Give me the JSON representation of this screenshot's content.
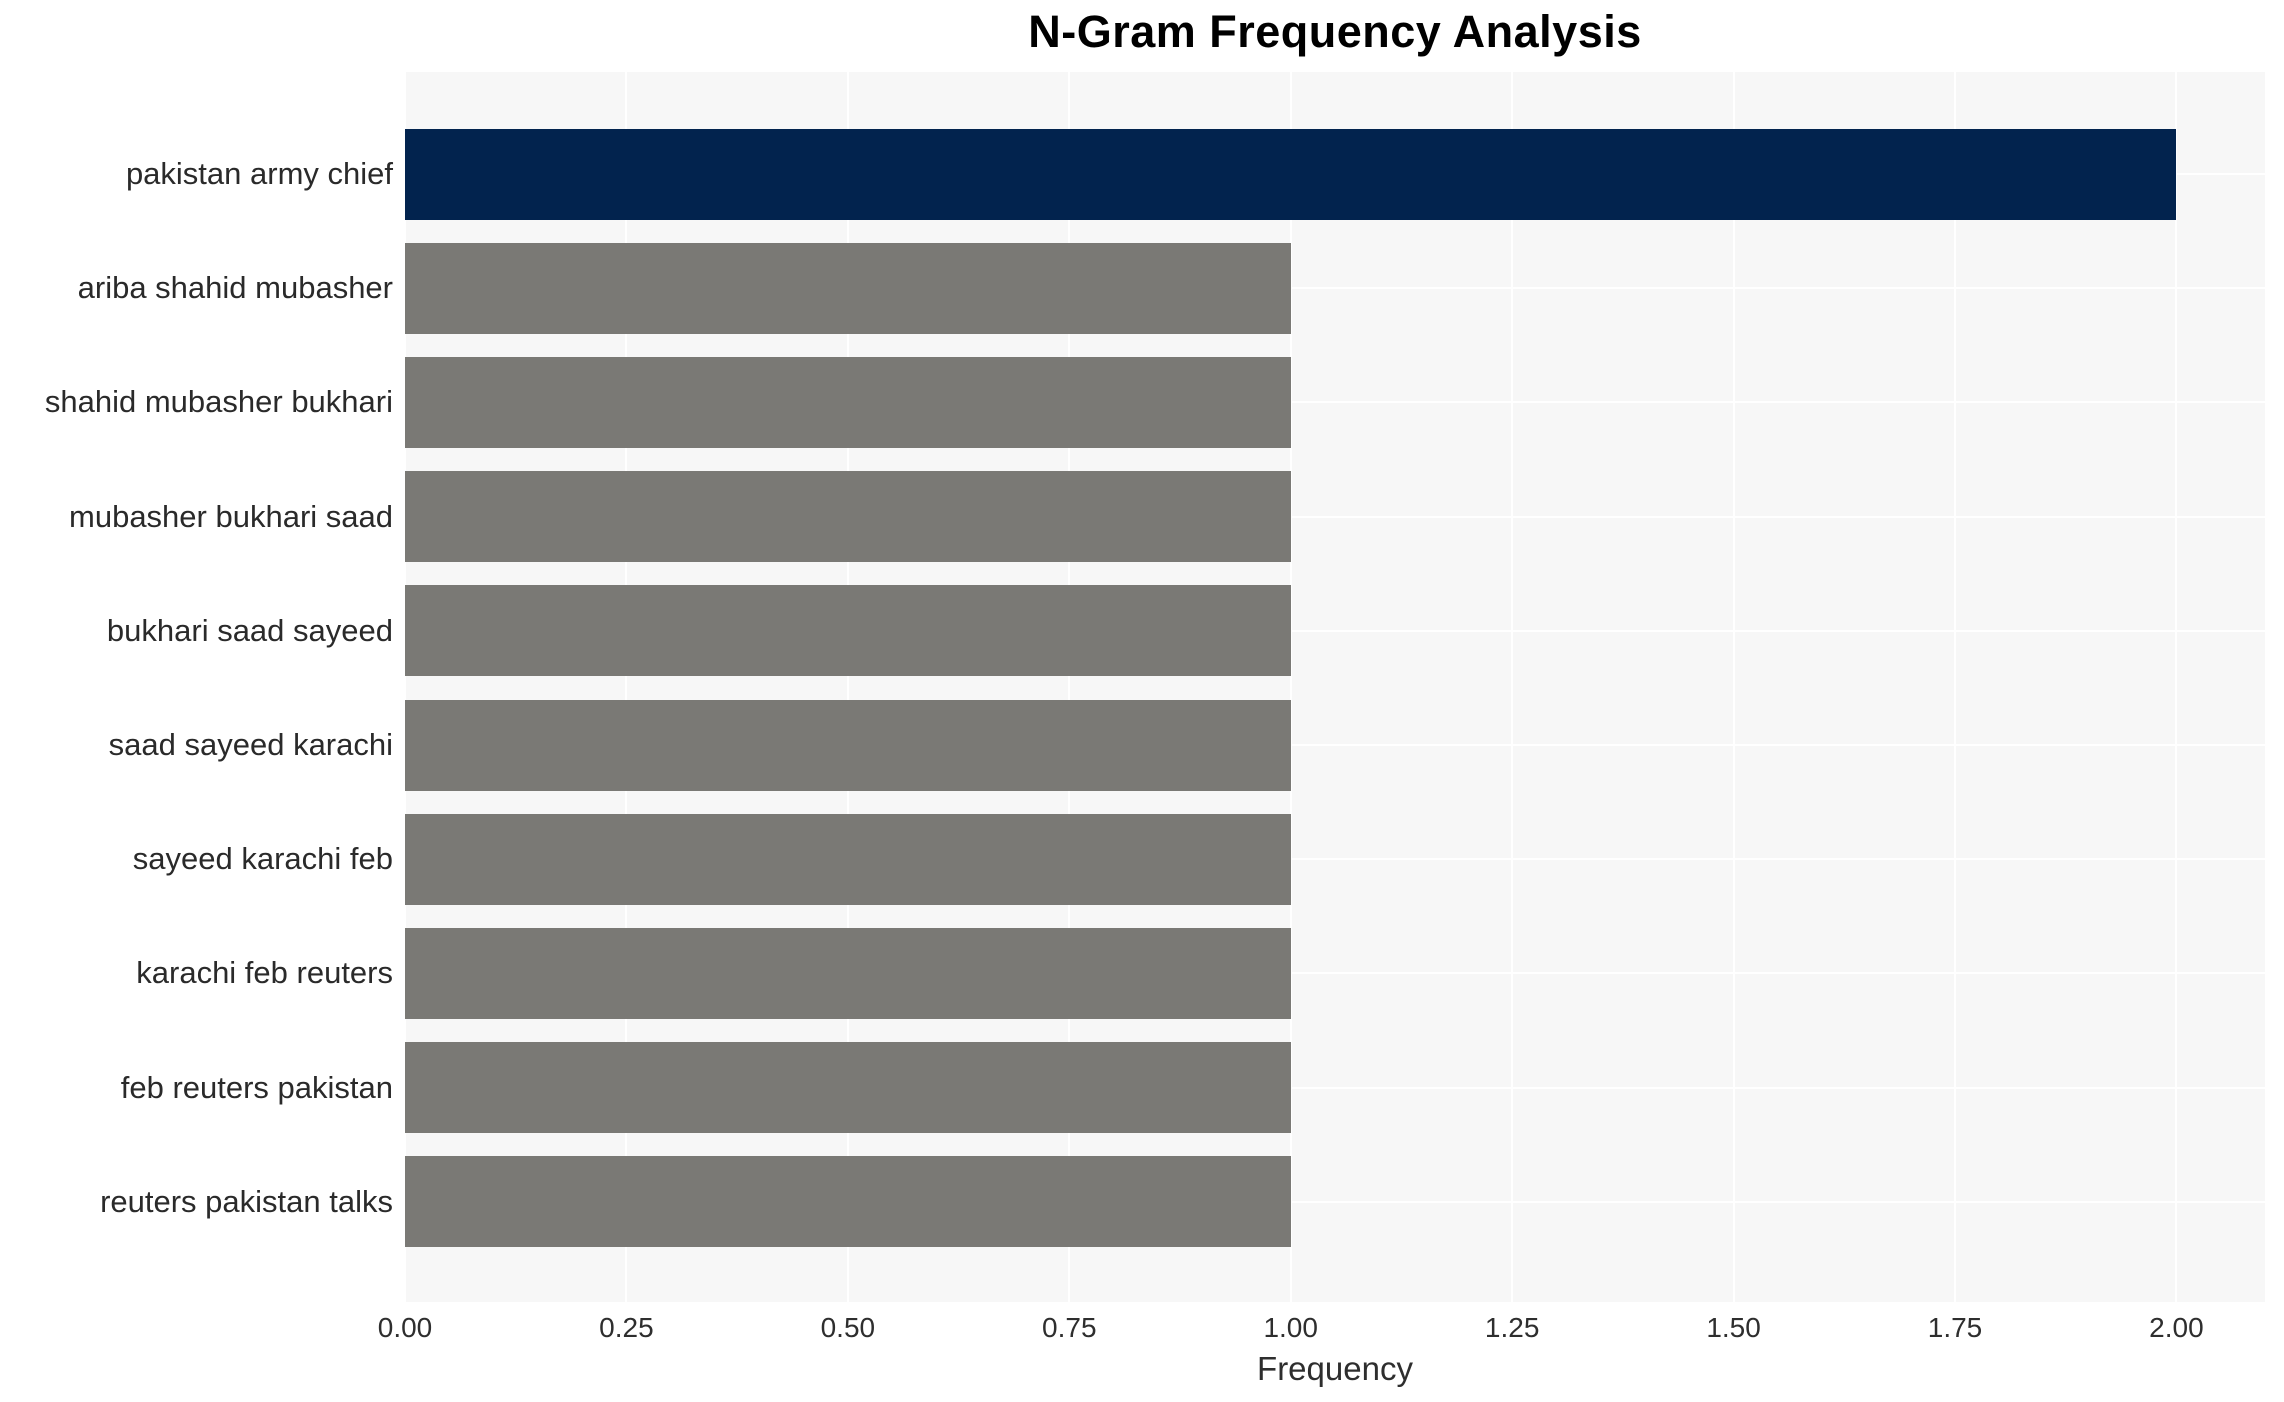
{
  "title": "N-Gram Frequency Analysis",
  "chart_data": {
    "type": "bar",
    "orientation": "horizontal",
    "title": "N-Gram Frequency Analysis",
    "xlabel": "Frequency",
    "ylabel": "",
    "xlim": [
      0,
      2.1
    ],
    "grid": true,
    "legend": false,
    "categories": [
      "pakistan army chief",
      "ariba shahid mubasher",
      "shahid mubasher bukhari",
      "mubasher bukhari saad",
      "bukhari saad sayeed",
      "saad sayeed karachi",
      "sayeed karachi feb",
      "karachi feb reuters",
      "feb reuters pakistan",
      "reuters pakistan talks"
    ],
    "values": [
      2,
      1,
      1,
      1,
      1,
      1,
      1,
      1,
      1,
      1
    ],
    "highlight_index": 0,
    "xticks": [
      {
        "label": "0.00",
        "value": 0
      },
      {
        "label": "0.25",
        "value": 0.25
      },
      {
        "label": "0.50",
        "value": 0.5
      },
      {
        "label": "0.75",
        "value": 0.75
      },
      {
        "label": "1.00",
        "value": 1
      },
      {
        "label": "1.25",
        "value": 1.25
      },
      {
        "label": "1.50",
        "value": 1.5
      },
      {
        "label": "1.75",
        "value": 1.75
      },
      {
        "label": "2.00",
        "value": 2
      }
    ],
    "colors": {
      "bar_highlight": "#02234e",
      "bar_default": "#7a7975",
      "plot_background": "#f7f7f7",
      "gridline": "#ffffff",
      "title_text": "#000000",
      "tick_text": "#2e2e2e",
      "category_text": "#2a2a2a"
    }
  }
}
